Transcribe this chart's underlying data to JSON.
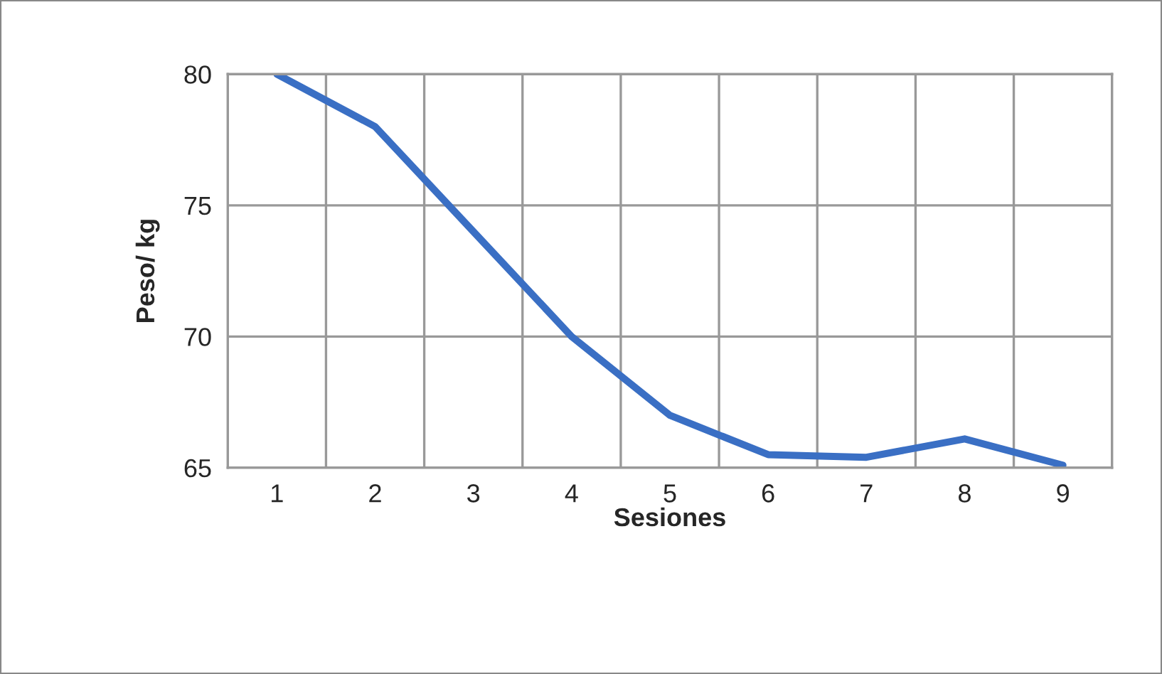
{
  "chart_data": {
    "type": "line",
    "xlabel": "Sesiones",
    "ylabel": "Peso/ kg",
    "categories": [
      "1",
      "2",
      "3",
      "4",
      "5",
      "6",
      "7",
      "8",
      "9"
    ],
    "series": [
      {
        "color": "#3a6fc4",
        "values": [
          80,
          78,
          74,
          70,
          67,
          65.5,
          65.4,
          66.1,
          65.1
        ]
      }
    ],
    "ylim": [
      65,
      80
    ],
    "yticks": [
      65,
      70,
      75,
      80
    ],
    "grid": true,
    "marker": "none",
    "line_style": "solid"
  }
}
